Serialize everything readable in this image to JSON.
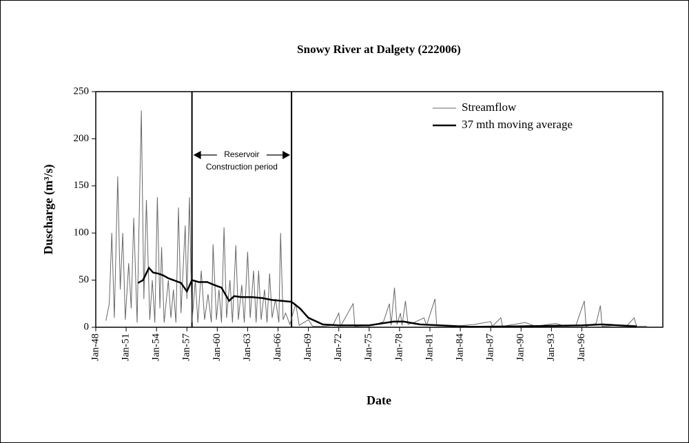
{
  "chart_data": {
    "type": "line",
    "title": "Snowy River at Dalgety (222006)",
    "x_label": "Date",
    "y_label": "Duscharge (m³/s)",
    "xlim": [
      "1948-01",
      "2004-01"
    ],
    "xticks": [
      {
        "value": "1948-01",
        "label": "Jan-48"
      },
      {
        "value": "1951-01",
        "label": "Jan-51"
      },
      {
        "value": "1954-01",
        "label": "Jan-54"
      },
      {
        "value": "1957-01",
        "label": "Jan-57"
      },
      {
        "value": "1960-01",
        "label": "Jan-60"
      },
      {
        "value": "1963-01",
        "label": "Jan-63"
      },
      {
        "value": "1966-01",
        "label": "Jan-66"
      },
      {
        "value": "1969-01",
        "label": "Jan-69"
      },
      {
        "value": "1972-01",
        "label": "Jan-72"
      },
      {
        "value": "1975-01",
        "label": "Jan-75"
      },
      {
        "value": "1978-01",
        "label": "Jan-78"
      },
      {
        "value": "1981-01",
        "label": "Jan-81"
      },
      {
        "value": "1984-01",
        "label": "Jan-84"
      },
      {
        "value": "1987-01",
        "label": "Jan-87"
      },
      {
        "value": "1990-01",
        "label": "Jan-90"
      },
      {
        "value": "1993-01",
        "label": "Jan-93"
      },
      {
        "value": "1996-01",
        "label": "Jan-96"
      }
    ],
    "ylim": [
      0,
      250
    ],
    "yticks": [
      0,
      50,
      100,
      150,
      200,
      250
    ],
    "legend": "top-right",
    "annotation": {
      "lines": [
        "Reservoir",
        "Construction period"
      ],
      "start": "1957-07",
      "end": "1967-05"
    },
    "series": [
      {
        "name": "Streamflow",
        "color": "#666666",
        "width": 1,
        "x": [
          "1949-01",
          "1949-05",
          "1949-08",
          "1949-11",
          "1950-03",
          "1950-06",
          "1950-09",
          "1950-12",
          "1951-04",
          "1951-07",
          "1951-10",
          "1952-02",
          "1952-07",
          "1952-10",
          "1953-01",
          "1953-05",
          "1953-08",
          "1953-11",
          "1954-02",
          "1954-05",
          "1954-07",
          "1954-10",
          "1955-03",
          "1955-06",
          "1955-09",
          "1955-12",
          "1956-03",
          "1956-06",
          "1956-11",
          "1957-01",
          "1957-04",
          "1957-07",
          "1957-11",
          "1958-02",
          "1958-06",
          "1958-10",
          "1959-02",
          "1959-06",
          "1959-08",
          "1959-12",
          "1960-03",
          "1960-06",
          "1960-09",
          "1960-12",
          "1961-04",
          "1961-07",
          "1961-11",
          "1962-02",
          "1962-06",
          "1962-09",
          "1963-01",
          "1963-04",
          "1963-08",
          "1963-11",
          "1964-02",
          "1964-05",
          "1964-09",
          "1964-12",
          "1965-03",
          "1965-06",
          "1965-10",
          "1966-02",
          "1966-04",
          "1966-07",
          "1966-10",
          "1967-03",
          "1967-10",
          "1968-02",
          "1969-01",
          "1969-06",
          "1970-06",
          "1971-06",
          "1972-01",
          "1972-03",
          "1973-06",
          "1973-08",
          "1975-06",
          "1976-06",
          "1977-01",
          "1977-03",
          "1977-07",
          "1977-10",
          "1978-02",
          "1978-04",
          "1978-08",
          "1978-11",
          "1979-06",
          "1980-06",
          "1980-09",
          "1981-07",
          "1981-09",
          "1983-06",
          "1985-06",
          "1987-01",
          "1987-03",
          "1988-01",
          "1988-03",
          "1990-06",
          "1991-06",
          "1993-06",
          "1994-06",
          "1995-06",
          "1996-04",
          "1996-06",
          "1997-06",
          "1997-11",
          "1998-01",
          "1999-06",
          "2000-06",
          "2001-03",
          "2001-06",
          "2002-06"
        ],
        "values": [
          7,
          25,
          100,
          10,
          160,
          40,
          100,
          8,
          68,
          20,
          116,
          5,
          230,
          30,
          135,
          8,
          50,
          5,
          138,
          20,
          85,
          5,
          50,
          10,
          40,
          5,
          127,
          15,
          108,
          30,
          138,
          5,
          50,
          5,
          60,
          8,
          35,
          5,
          88,
          8,
          40,
          5,
          106,
          10,
          50,
          5,
          87,
          8,
          45,
          5,
          80,
          10,
          60,
          5,
          60,
          8,
          40,
          5,
          57,
          10,
          30,
          5,
          100,
          8,
          15,
          3,
          25,
          2,
          8,
          1,
          1,
          2,
          15,
          1,
          25,
          1,
          2,
          6,
          25,
          2,
          42,
          3,
          15,
          2,
          28,
          3,
          5,
          10,
          2,
          30,
          2,
          1,
          3,
          6,
          1,
          10,
          1,
          5,
          1,
          4,
          1,
          2,
          28,
          1,
          4,
          23,
          1,
          2,
          1,
          10,
          1,
          1
        ]
      },
      {
        "name": "37 mth moving average",
        "color": "#000000",
        "width": 2.5,
        "x": [
          "1952-03",
          "1952-09",
          "1953-04",
          "1953-09",
          "1954-03",
          "1954-09",
          "1955-03",
          "1955-09",
          "1956-06",
          "1957-01",
          "1957-07",
          "1958-03",
          "1959-01",
          "1959-09",
          "1960-06",
          "1961-03",
          "1961-09",
          "1962-06",
          "1963-06",
          "1964-06",
          "1965-06",
          "1966-06",
          "1967-05",
          "1968-03",
          "1969-01",
          "1970-06",
          "1972-01",
          "1975-01",
          "1977-06",
          "1978-06",
          "1980-01",
          "1982-01",
          "1985-01",
          "1990-01",
          "1996-01",
          "1998-01",
          "2001-06"
        ],
        "values": [
          47,
          50,
          63,
          58,
          57,
          55,
          52,
          50,
          47,
          38,
          50,
          48,
          48,
          45,
          42,
          28,
          33,
          32,
          32,
          31,
          29,
          28,
          27,
          20,
          10,
          3,
          2,
          2,
          6,
          6,
          3,
          2,
          0.5,
          1,
          2,
          3,
          1
        ]
      }
    ]
  }
}
